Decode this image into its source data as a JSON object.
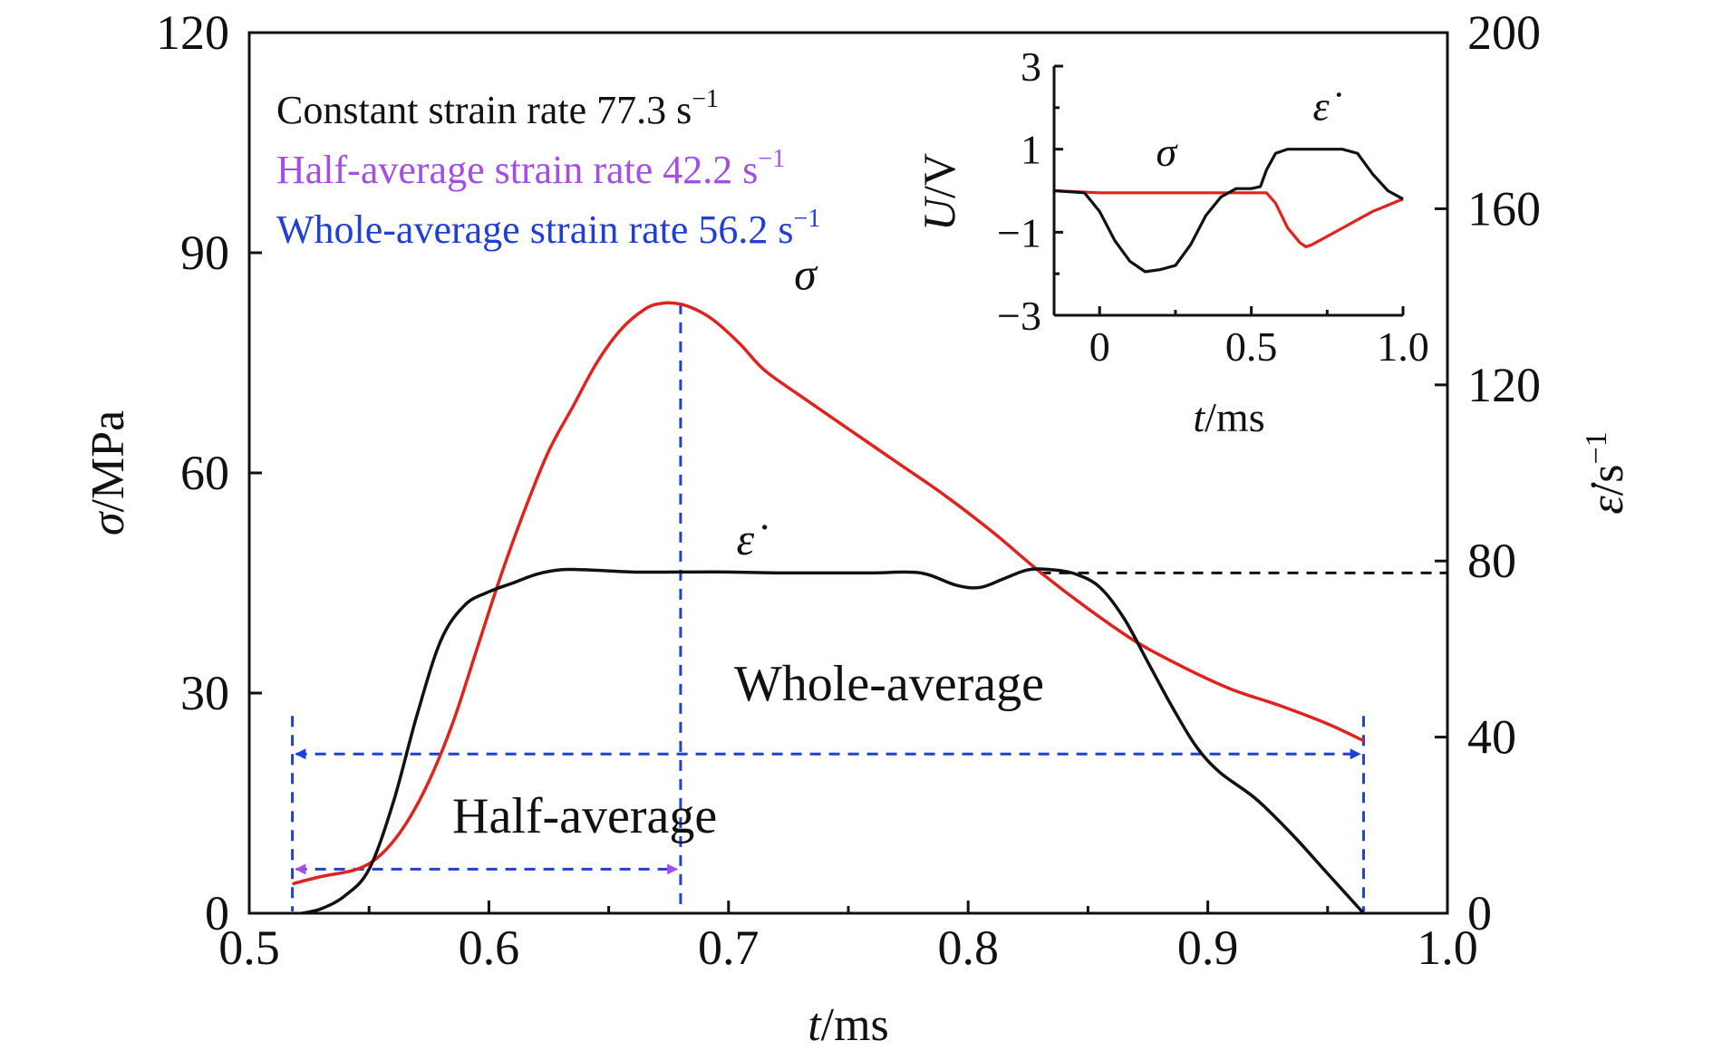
{
  "chart_data": [
    {
      "type": "line",
      "xlabel": "t/ms",
      "ylabel": "σ/MPa",
      "y2label": "ε̇/s⁻¹",
      "xlim": [
        0.5,
        1.0
      ],
      "ylim": [
        0,
        120
      ],
      "y2lim": [
        0,
        200
      ],
      "x_ticks": [
        "0.5",
        "0.6",
        "0.7",
        "0.8",
        "0.9",
        "1.0"
      ],
      "y_ticks": [
        "0",
        "30",
        "60",
        "90",
        "120"
      ],
      "y2_ticks": [
        "0",
        "40",
        "80",
        "120",
        "160",
        "200"
      ],
      "legend": [
        {
          "text": "Constant strain rate 77.3 s",
          "sup": "−1",
          "color": "#111111"
        },
        {
          "text": "Half-average strain rate 42.2 s",
          "sup": "−1",
          "color": "#a54ee6"
        },
        {
          "text": "Whole-average strain rate 56.2 s",
          "sup": "−1",
          "color": "#1f3fd6"
        }
      ],
      "series": [
        {
          "name": "σ",
          "axis": "left",
          "color": "#e0231c",
          "x": [
            0.518,
            0.53,
            0.545,
            0.555,
            0.565,
            0.575,
            0.585,
            0.595,
            0.605,
            0.615,
            0.625,
            0.635,
            0.645,
            0.655,
            0.665,
            0.672,
            0.68,
            0.688,
            0.695,
            0.705,
            0.715,
            0.73,
            0.75,
            0.77,
            0.79,
            0.81,
            0.83,
            0.85,
            0.87,
            0.89,
            0.91,
            0.93,
            0.95,
            0.965
          ],
          "values": [
            4,
            5,
            6,
            8,
            12,
            18,
            26,
            36,
            46,
            55,
            63,
            69,
            75,
            79.5,
            82.3,
            83.1,
            83,
            82,
            80.5,
            77.5,
            74,
            70.5,
            66,
            61.5,
            57,
            52,
            46.5,
            41.5,
            37,
            33.5,
            30.5,
            28.3,
            25.8,
            23.5
          ]
        },
        {
          "name": "ε̇",
          "axis": "right",
          "color": "#111111",
          "x": [
            0.522,
            0.53,
            0.54,
            0.55,
            0.56,
            0.57,
            0.58,
            0.59,
            0.6,
            0.61,
            0.62,
            0.63,
            0.64,
            0.66,
            0.68,
            0.7,
            0.72,
            0.74,
            0.76,
            0.78,
            0.795,
            0.805,
            0.815,
            0.825,
            0.835,
            0.845,
            0.855,
            0.865,
            0.875,
            0.885,
            0.895,
            0.905,
            0.92,
            0.935,
            0.95,
            0.965
          ],
          "values": [
            0,
            1,
            4,
            10,
            25,
            45,
            62,
            70,
            73,
            75,
            77,
            78,
            78,
            77.5,
            77.5,
            77.5,
            77.3,
            77.3,
            77.3,
            77.3,
            74.5,
            74,
            76,
            78,
            78,
            77,
            74,
            67,
            57,
            47,
            38,
            32,
            26,
            18,
            9,
            0
          ]
        }
      ],
      "annotations": [
        {
          "label": "σ",
          "x": 0.732,
          "y": 85
        },
        {
          "label": "ε̇",
          "x": 0.707,
          "y": 81.5,
          "axis": "right"
        },
        {
          "label": "Whole-average",
          "x": 0.767,
          "y": 29
        },
        {
          "label": "Half-average",
          "x": 0.64,
          "y": 11
        }
      ],
      "reference_lines": [
        {
          "type": "vertical",
          "x": 0.518,
          "color": "#1f3fd6",
          "style": "dashed"
        },
        {
          "type": "vertical",
          "x": 0.68,
          "color": "#1f3fd6",
          "style": "dashed"
        },
        {
          "type": "vertical",
          "x": 0.965,
          "color": "#1f3fd6",
          "style": "dashed"
        },
        {
          "type": "horizontal",
          "from_x": 0.83,
          "to_x": 1.0,
          "y": 77.3,
          "axis": "right",
          "color": "#111111",
          "style": "dashed"
        },
        {
          "type": "arrow",
          "label": "Whole-average",
          "from_x": 0.518,
          "to_x": 0.965,
          "y": 21.7,
          "color": "#1f3fd6"
        },
        {
          "type": "arrow",
          "label": "Half-average",
          "from_x": 0.518,
          "to_x": 0.68,
          "y": 6,
          "color": "#a54ee6"
        }
      ]
    },
    {
      "type": "line",
      "inset": true,
      "xlabel": "t/ms",
      "ylabel": "U/V",
      "xlim": [
        -0.15,
        1.0
      ],
      "ylim": [
        -3,
        3
      ],
      "x_ticks": [
        "0",
        "0.5",
        "1.0"
      ],
      "y_ticks": [
        "−3",
        "−1",
        "1",
        "3"
      ],
      "series": [
        {
          "name": "σ",
          "color": "#e0231c",
          "x": [
            -0.15,
            0.0,
            0.2,
            0.4,
            0.5,
            0.55,
            0.58,
            0.62,
            0.66,
            0.68,
            0.7,
            0.75,
            0.8,
            0.85,
            0.9,
            0.95,
            1.0
          ],
          "values": [
            0,
            -0.05,
            -0.05,
            -0.05,
            -0.05,
            -0.05,
            -0.3,
            -0.9,
            -1.25,
            -1.35,
            -1.3,
            -1.1,
            -0.9,
            -0.7,
            -0.5,
            -0.35,
            -0.2
          ]
        },
        {
          "name": "ε̇",
          "color": "#111111",
          "x": [
            -0.15,
            -0.05,
            0.0,
            0.05,
            0.1,
            0.15,
            0.2,
            0.25,
            0.3,
            0.35,
            0.4,
            0.45,
            0.5,
            0.53,
            0.55,
            0.58,
            0.62,
            0.7,
            0.8,
            0.85,
            0.9,
            0.95,
            1.0
          ],
          "values": [
            0,
            -0.05,
            -0.5,
            -1.2,
            -1.7,
            -1.95,
            -1.9,
            -1.8,
            -1.3,
            -0.6,
            -0.15,
            0.05,
            0.05,
            0.1,
            0.5,
            0.9,
            1.0,
            1.0,
            1.0,
            0.9,
            0.4,
            0.0,
            -0.2
          ]
        }
      ],
      "annotations": [
        {
          "label": "σ",
          "x": 0.22,
          "y": 0.6
        },
        {
          "label": "ε̇",
          "x": 0.73,
          "y": 1.7
        }
      ]
    }
  ]
}
